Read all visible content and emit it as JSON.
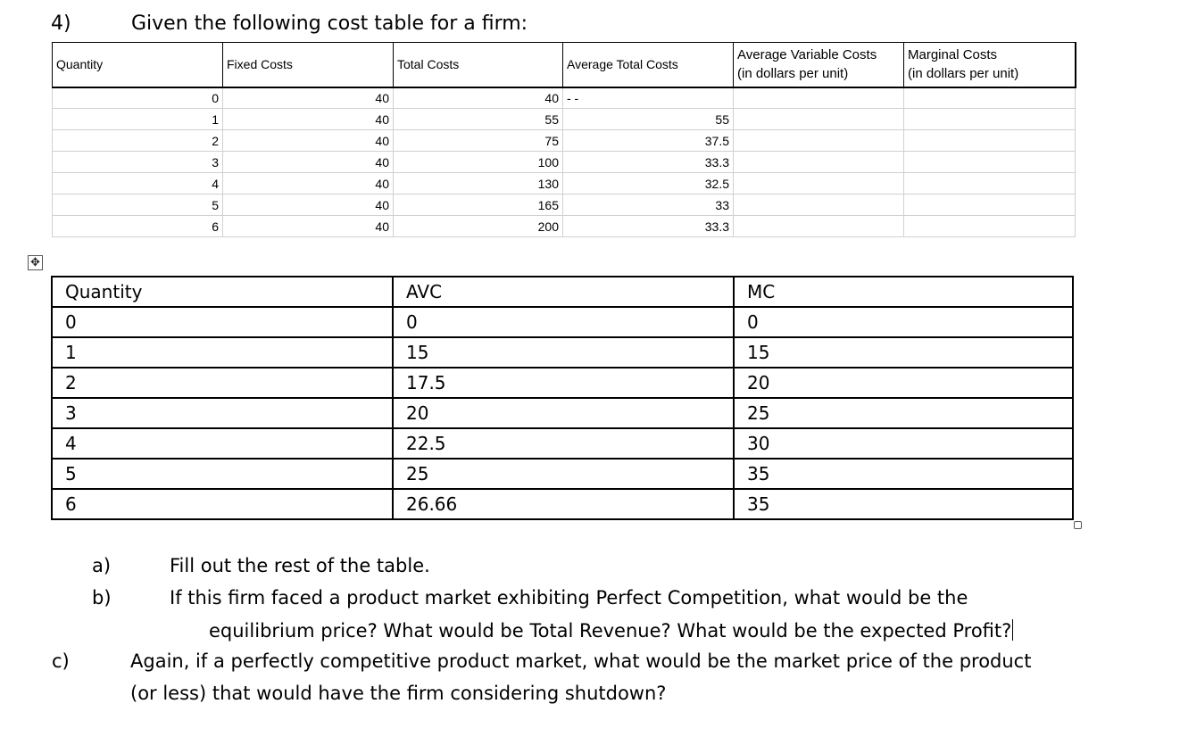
{
  "question": {
    "number": "4)",
    "title": "Given the following cost table for a firm:"
  },
  "cost_table": {
    "headers": {
      "quantity": "Quantity",
      "fixed": "Fixed Costs",
      "total": "Total Costs",
      "atc": "Average Total Costs",
      "avc_line1": "Average Variable Costs",
      "avc_line2": "(in dollars per unit)",
      "mc_line1": "Marginal Costs",
      "mc_line2": "(in dollars per unit)"
    },
    "rows": [
      {
        "q": "0",
        "fc": "40",
        "tc": "40",
        "dash": "- -",
        "atc": ""
      },
      {
        "q": "1",
        "fc": "40",
        "tc": "55",
        "dash": "",
        "atc": "55"
      },
      {
        "q": "2",
        "fc": "40",
        "tc": "75",
        "dash": "",
        "atc": "37.5"
      },
      {
        "q": "3",
        "fc": "40",
        "tc": "100",
        "dash": "",
        "atc": "33.3"
      },
      {
        "q": "4",
        "fc": "40",
        "tc": "130",
        "dash": "",
        "atc": "32.5"
      },
      {
        "q": "5",
        "fc": "40",
        "tc": "165",
        "dash": "",
        "atc": "33"
      },
      {
        "q": "6",
        "fc": "40",
        "tc": "200",
        "dash": "",
        "atc": "33.3"
      }
    ]
  },
  "answer_table": {
    "headers": {
      "quantity": "Quantity",
      "avc": "AVC",
      "mc": "MC"
    },
    "rows": [
      {
        "q": "0",
        "avc": "0",
        "mc": "0"
      },
      {
        "q": "1",
        "avc": "15",
        "mc": "15"
      },
      {
        "q": "2",
        "avc": "17.5",
        "mc": "20"
      },
      {
        "q": "3",
        "avc": "20",
        "mc": "25"
      },
      {
        "q": "4",
        "avc": "22.5",
        "mc": "30"
      },
      {
        "q": "5",
        "avc": "25",
        "mc": "35"
      },
      {
        "q": "6",
        "avc": "26.66",
        "mc": "35"
      }
    ]
  },
  "questions": {
    "a_label": "a)",
    "a_text": "Fill out the rest of the table.",
    "b_label": "b)",
    "b_line1": "If this firm faced a product market exhibiting Perfect Competition, what would be the",
    "b_line2": "equilibrium price? What would be Total Revenue? What would be the expected Profit?",
    "c_label": "c)",
    "c_line1": "Again, if a perfectly competitive product market, what would be the market price of the product",
    "c_line2": "(or less) that would have the firm considering shutdown?"
  },
  "icons": {
    "move": "move-icon",
    "resize": "resize-handle-icon"
  }
}
